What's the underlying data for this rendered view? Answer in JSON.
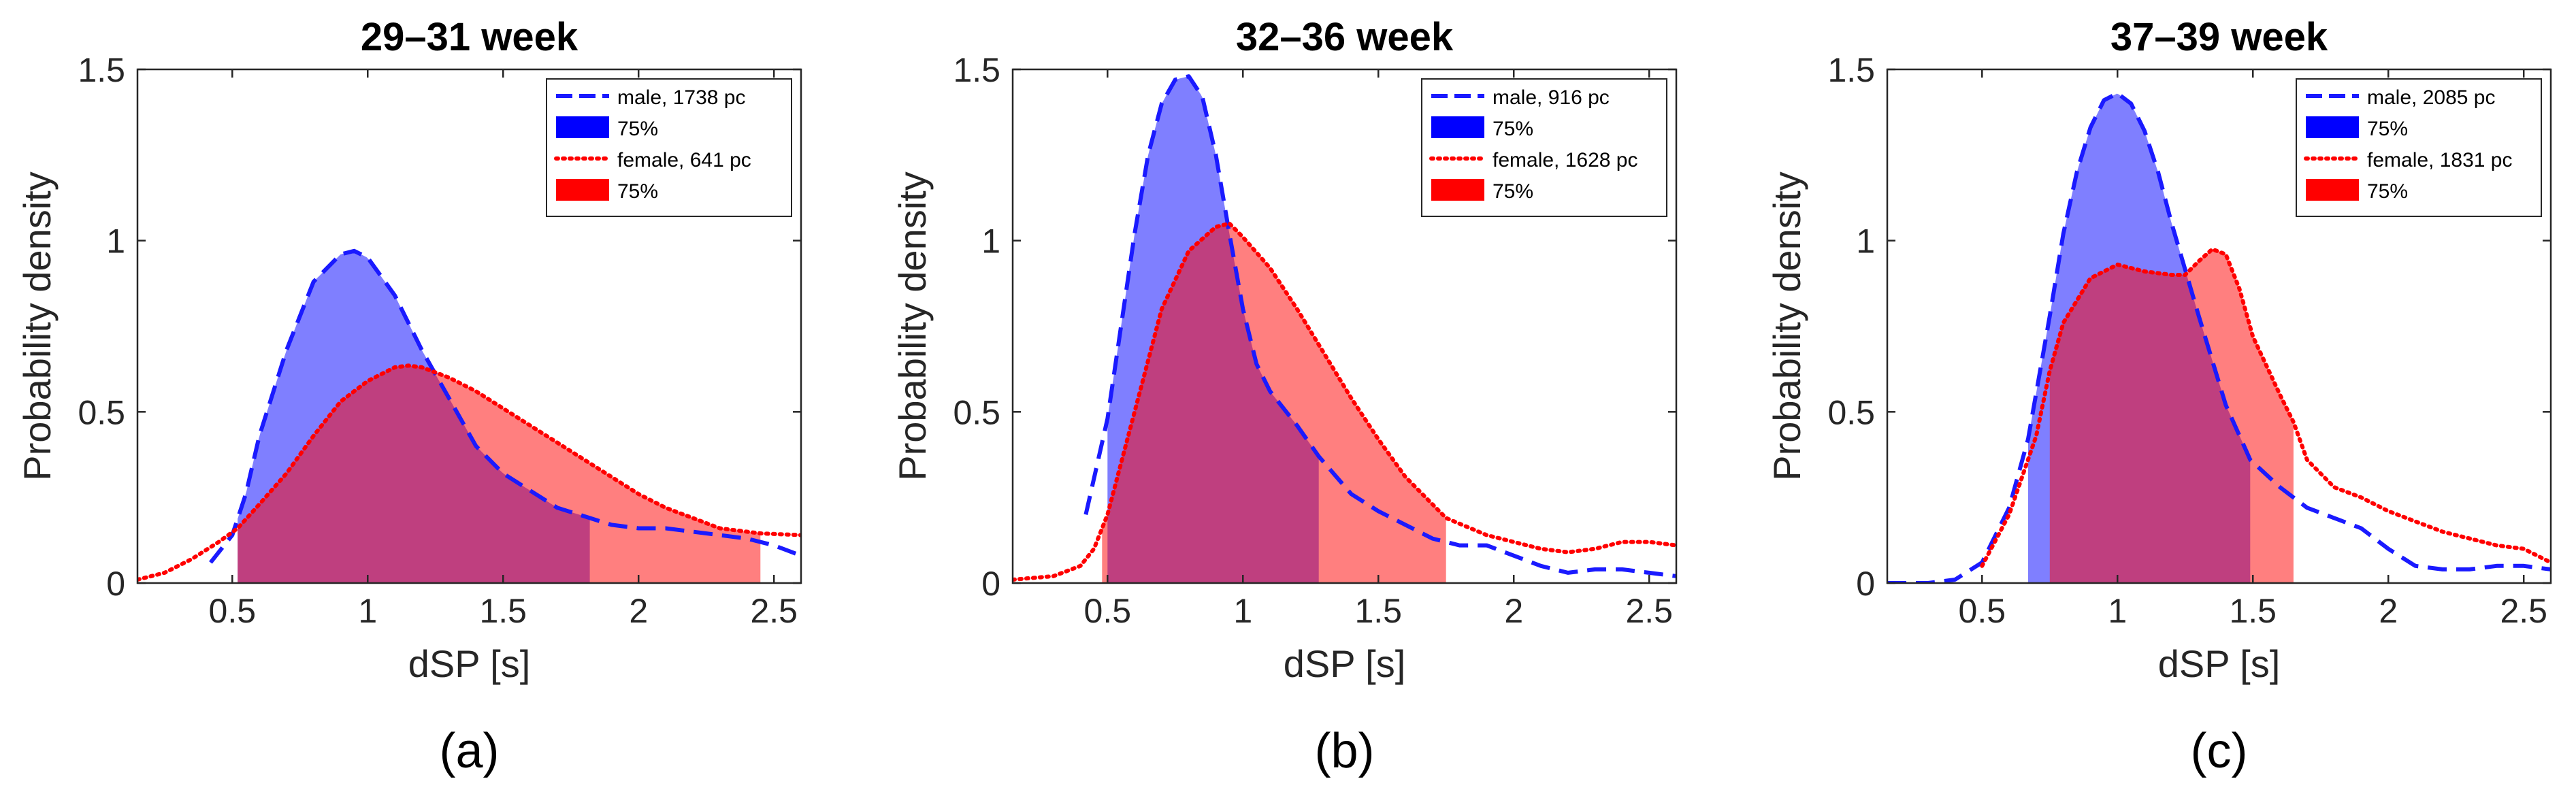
{
  "chart_data": [
    {
      "type": "area",
      "panel_label": "(a)",
      "title": "29–31 week",
      "xlabel": "dSP [s]",
      "ylabel": "Probability density",
      "xlim": [
        0.15,
        2.6
      ],
      "ylim": [
        0,
        1.5
      ],
      "xticks": [
        0.5,
        1,
        1.5,
        2,
        2.5
      ],
      "xtick_labels": [
        "0.5",
        "1",
        "1.5",
        "2",
        "2.5"
      ],
      "yticks": [
        0,
        0.5,
        1,
        1.5
      ],
      "ytick_labels": [
        "0",
        "0.5",
        "1",
        "1.5"
      ],
      "grid": false,
      "legend_position": "top-right",
      "legend": [
        "male, 1738 pc",
        "75%",
        "female, 641 pc",
        "75%"
      ],
      "series": [
        {
          "name": "male, 1738 pc",
          "line_style": "dashed",
          "color": "#1a1aff",
          "fill_color": "#7f7fff",
          "shaded_interval_75": [
            0.52,
            1.82
          ],
          "x": [
            0.42,
            0.5,
            0.55,
            0.6,
            0.7,
            0.8,
            0.9,
            0.95,
            1.0,
            1.1,
            1.2,
            1.3,
            1.4,
            1.5,
            1.6,
            1.7,
            1.82,
            1.9,
            2.0,
            2.1,
            2.2,
            2.3,
            2.4,
            2.5,
            2.6
          ],
          "y": [
            0.06,
            0.14,
            0.26,
            0.43,
            0.68,
            0.88,
            0.96,
            0.97,
            0.95,
            0.84,
            0.68,
            0.54,
            0.4,
            0.32,
            0.27,
            0.22,
            0.19,
            0.17,
            0.16,
            0.16,
            0.15,
            0.14,
            0.13,
            0.11,
            0.08
          ]
        },
        {
          "name": "female, 641 pc",
          "line_style": "dotted",
          "color": "#ff0000",
          "fill_color": "#ff7f7f",
          "shaded_interval_75": [
            0.52,
            2.45
          ],
          "x": [
            0.15,
            0.25,
            0.35,
            0.45,
            0.52,
            0.6,
            0.7,
            0.8,
            0.9,
            1.0,
            1.1,
            1.15,
            1.2,
            1.3,
            1.4,
            1.5,
            1.6,
            1.7,
            1.8,
            1.9,
            2.0,
            2.1,
            2.2,
            2.3,
            2.45,
            2.6
          ],
          "y": [
            0.01,
            0.03,
            0.07,
            0.12,
            0.16,
            0.23,
            0.32,
            0.43,
            0.53,
            0.59,
            0.63,
            0.635,
            0.63,
            0.6,
            0.56,
            0.51,
            0.46,
            0.41,
            0.36,
            0.31,
            0.26,
            0.22,
            0.19,
            0.16,
            0.145,
            0.14
          ]
        }
      ]
    },
    {
      "type": "area",
      "panel_label": "(b)",
      "title": "32–36 week",
      "xlabel": "dSP [s]",
      "ylabel": "Probability density",
      "xlim": [
        0.15,
        2.6
      ],
      "ylim": [
        0,
        1.5
      ],
      "xticks": [
        0.5,
        1,
        1.5,
        2,
        2.5
      ],
      "xtick_labels": [
        "0.5",
        "1",
        "1.5",
        "2",
        "2.5"
      ],
      "yticks": [
        0,
        0.5,
        1,
        1.5
      ],
      "ytick_labels": [
        "0",
        "0.5",
        "1",
        "1.5"
      ],
      "grid": false,
      "legend_position": "top-right",
      "legend": [
        "male, 916 pc",
        "75%",
        "female, 1628 pc",
        "75%"
      ],
      "series": [
        {
          "name": "male, 916 pc",
          "line_style": "dashed",
          "color": "#1a1aff",
          "fill_color": "#7f7fff",
          "shaded_interval_75": [
            0.5,
            1.28
          ],
          "x": [
            0.42,
            0.5,
            0.55,
            0.6,
            0.65,
            0.7,
            0.75,
            0.8,
            0.85,
            0.9,
            0.95,
            1.0,
            1.05,
            1.1,
            1.2,
            1.28,
            1.4,
            1.5,
            1.6,
            1.7,
            1.8,
            1.9,
            2.0,
            2.1,
            2.2,
            2.3,
            2.4,
            2.5,
            2.6
          ],
          "y": [
            0.2,
            0.48,
            0.75,
            1.02,
            1.25,
            1.4,
            1.47,
            1.48,
            1.42,
            1.25,
            1.02,
            0.8,
            0.64,
            0.56,
            0.46,
            0.37,
            0.26,
            0.21,
            0.17,
            0.13,
            0.11,
            0.11,
            0.08,
            0.05,
            0.03,
            0.04,
            0.04,
            0.03,
            0.02
          ]
        },
        {
          "name": "female, 1628 pc",
          "line_style": "dotted",
          "color": "#ff0000",
          "fill_color": "#ff7f7f",
          "shaded_interval_75": [
            0.48,
            1.75
          ],
          "x": [
            0.15,
            0.3,
            0.4,
            0.45,
            0.5,
            0.6,
            0.7,
            0.8,
            0.9,
            0.95,
            1.0,
            1.1,
            1.2,
            1.3,
            1.4,
            1.5,
            1.6,
            1.75,
            1.9,
            2.0,
            2.1,
            2.2,
            2.3,
            2.4,
            2.5,
            2.6
          ],
          "y": [
            0.01,
            0.02,
            0.05,
            0.1,
            0.2,
            0.5,
            0.8,
            0.97,
            1.04,
            1.05,
            1.01,
            0.92,
            0.8,
            0.67,
            0.54,
            0.42,
            0.31,
            0.19,
            0.14,
            0.12,
            0.1,
            0.09,
            0.1,
            0.12,
            0.12,
            0.11
          ]
        }
      ]
    },
    {
      "type": "area",
      "panel_label": "(c)",
      "title": "37–39 week",
      "xlabel": "dSP [s]",
      "ylabel": "Probability density",
      "xlim": [
        0.15,
        2.6
      ],
      "ylim": [
        0,
        1.5
      ],
      "xticks": [
        0.5,
        1,
        1.5,
        2,
        2.5
      ],
      "xtick_labels": [
        "0.5",
        "1",
        "1.5",
        "2",
        "2.5"
      ],
      "yticks": [
        0,
        0.5,
        1,
        1.5
      ],
      "ytick_labels": [
        "0",
        "0.5",
        "1",
        "1.5"
      ],
      "grid": false,
      "legend_position": "top-right",
      "legend": [
        "male, 2085 pc",
        "75%",
        "female, 1831 pc",
        "75%"
      ],
      "series": [
        {
          "name": "male, 2085 pc",
          "line_style": "dashed",
          "color": "#1a1aff",
          "fill_color": "#7f7fff",
          "shaded_interval_75": [
            0.67,
            1.49
          ],
          "x": [
            0.15,
            0.3,
            0.4,
            0.5,
            0.6,
            0.67,
            0.75,
            0.8,
            0.85,
            0.9,
            0.95,
            1.0,
            1.05,
            1.1,
            1.15,
            1.2,
            1.3,
            1.4,
            1.49,
            1.6,
            1.7,
            1.8,
            1.9,
            2.0,
            2.1,
            2.2,
            2.3,
            2.4,
            2.5,
            2.6
          ],
          "y": [
            0.0,
            0.0,
            0.01,
            0.06,
            0.22,
            0.42,
            0.78,
            1.02,
            1.2,
            1.33,
            1.41,
            1.43,
            1.4,
            1.32,
            1.2,
            1.05,
            0.78,
            0.52,
            0.36,
            0.28,
            0.22,
            0.19,
            0.16,
            0.1,
            0.05,
            0.04,
            0.04,
            0.05,
            0.05,
            0.04
          ]
        },
        {
          "name": "female, 1831 pc",
          "line_style": "dotted",
          "color": "#ff0000",
          "fill_color": "#ff7f7f",
          "shaded_interval_75": [
            0.75,
            1.65
          ],
          "x": [
            0.5,
            0.6,
            0.7,
            0.75,
            0.8,
            0.9,
            1.0,
            1.1,
            1.2,
            1.25,
            1.3,
            1.35,
            1.4,
            1.45,
            1.5,
            1.6,
            1.65,
            1.7,
            1.8,
            1.9,
            2.0,
            2.2,
            2.4,
            2.5,
            2.6
          ],
          "y": [
            0.05,
            0.2,
            0.43,
            0.62,
            0.76,
            0.89,
            0.93,
            0.91,
            0.9,
            0.9,
            0.94,
            0.975,
            0.96,
            0.86,
            0.72,
            0.55,
            0.47,
            0.36,
            0.28,
            0.25,
            0.21,
            0.15,
            0.11,
            0.1,
            0.06
          ]
        }
      ]
    }
  ]
}
